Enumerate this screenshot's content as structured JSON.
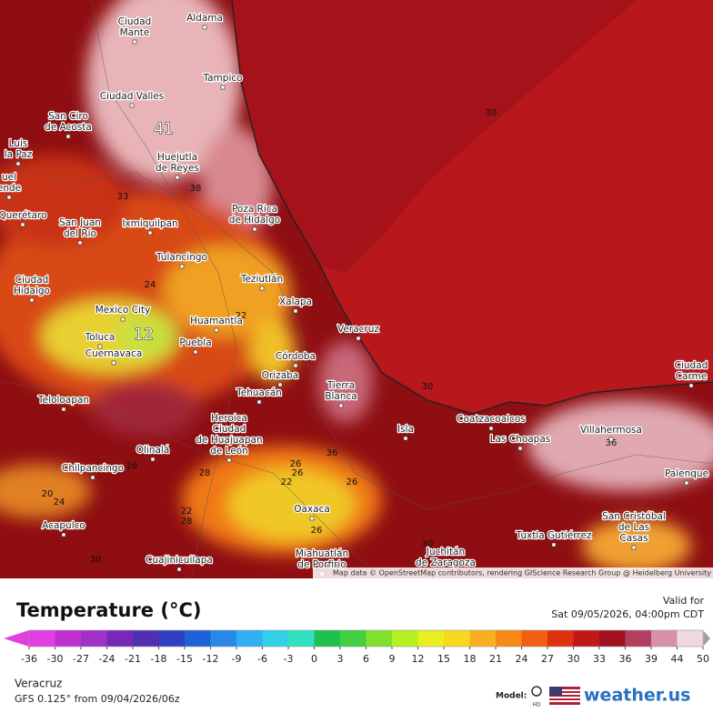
{
  "map": {
    "places": [
      {
        "lines": [
          "Ciudad",
          "Mante"
        ]
      },
      {
        "lines": [
          "Aldama"
        ]
      },
      {
        "lines": [
          "Tampico"
        ]
      },
      {
        "lines": [
          "Ciudad Valles"
        ]
      },
      {
        "lines": [
          "San Ciro",
          "de Acosta"
        ]
      },
      {
        "lines": [
          "Luis",
          "la Paz"
        ]
      },
      {
        "lines": [
          "uel",
          "ende"
        ]
      },
      {
        "lines": [
          "Querétaro"
        ]
      },
      {
        "lines": [
          "Huejutla",
          "de Reyes"
        ]
      },
      {
        "lines": [
          "Poza Rica",
          "de Hidalgo"
        ]
      },
      {
        "lines": [
          "San Juan",
          "del Río"
        ]
      },
      {
        "lines": [
          "Ixmiquilpan"
        ]
      },
      {
        "lines": [
          "Tulancingo"
        ]
      },
      {
        "lines": [
          "Teziutlán"
        ]
      },
      {
        "lines": [
          "Ciudad",
          "Hidalgo"
        ]
      },
      {
        "lines": [
          "Xalapa"
        ]
      },
      {
        "lines": [
          "Mexico City"
        ]
      },
      {
        "lines": [
          "Huamantla"
        ]
      },
      {
        "lines": [
          "Veracruz"
        ]
      },
      {
        "lines": [
          "Toluca"
        ]
      },
      {
        "lines": [
          "Puebla"
        ]
      },
      {
        "lines": [
          "Cuernavaca"
        ]
      },
      {
        "lines": [
          "Córdoba"
        ]
      },
      {
        "lines": [
          "Orizaba"
        ]
      },
      {
        "lines": [
          "Tierra",
          "Blanca"
        ]
      },
      {
        "lines": [
          "Tehuacán"
        ]
      },
      {
        "lines": [
          "Teloloapan"
        ]
      },
      {
        "lines": [
          "Heroica",
          "Ciudad",
          "de Huajuapan",
          "de León"
        ]
      },
      {
        "lines": [
          "Isla"
        ]
      },
      {
        "lines": [
          "Coatzacoalcos"
        ]
      },
      {
        "lines": [
          "Villahermosa"
        ]
      },
      {
        "lines": [
          "Las Choapas"
        ]
      },
      {
        "lines": [
          "Olinalá"
        ]
      },
      {
        "lines": [
          "Chilpancingo"
        ]
      },
      {
        "lines": [
          "Palenque"
        ]
      },
      {
        "lines": [
          "Oaxaca"
        ]
      },
      {
        "lines": [
          "San Cristóbal",
          "de Las",
          "Casas"
        ]
      },
      {
        "lines": [
          "Tuxtla Gutiérrez"
        ]
      },
      {
        "lines": [
          "Acapulco"
        ]
      },
      {
        "lines": [
          "Juchitán",
          "de Zaragoza"
        ]
      },
      {
        "lines": [
          "Miahuatlán",
          "de Porfirio"
        ]
      },
      {
        "lines": [
          "Cuajinicuilapa"
        ]
      },
      {
        "lines": [
          "Ciudad",
          "Carme"
        ]
      }
    ],
    "contours": [
      "30",
      "41",
      "38",
      "33",
      "24",
      "12",
      "22",
      "30",
      "36",
      "26",
      "26",
      "22",
      "26",
      "28",
      "26",
      "20",
      "24",
      "22",
      "28",
      "26",
      "30",
      "36",
      "30"
    ],
    "attribution": "Map data © OpenStreetMap contributors, rendering GIScience Research Group @ Heidelberg University"
  },
  "legend": {
    "title": "Temperature (°C)",
    "valid_label": "Valid for",
    "valid_time": "Sat 09/05/2026, 04:00pm CDT",
    "ticks": [
      -36,
      -30,
      -27,
      -24,
      -21,
      -18,
      -15,
      -12,
      -9,
      -6,
      -3,
      0,
      3,
      6,
      9,
      12,
      15,
      18,
      21,
      24,
      27,
      30,
      33,
      36,
      39,
      44,
      50
    ],
    "colors": [
      "#e040e0",
      "#c030d0",
      "#a030c8",
      "#7828b8",
      "#5030b0",
      "#3040c0",
      "#2060d8",
      "#2888e8",
      "#30b0f0",
      "#30d0e8",
      "#30e0c0",
      "#20c050",
      "#40d040",
      "#80e030",
      "#b8f020",
      "#e8f020",
      "#f8d820",
      "#f8b020",
      "#f88818",
      "#f06010",
      "#e03010",
      "#c01818",
      "#a01020",
      "#b04060",
      "#d890a8",
      "#f0d8e0",
      "#a0a0a0"
    ],
    "location": "Veracruz",
    "model_run": "GFS 0.125° from 09/04/2026/06z",
    "model_label": "Model:",
    "hd": "HD",
    "brand": "weather.us"
  }
}
